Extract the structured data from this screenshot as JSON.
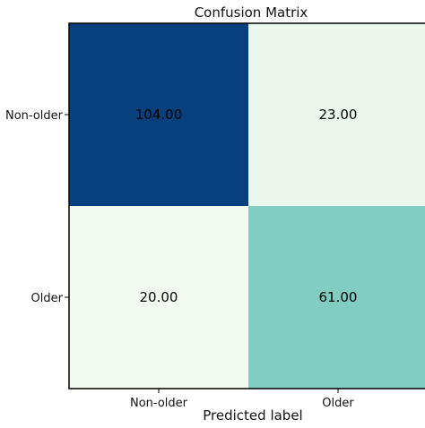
{
  "chart_data": {
    "type": "heatmap",
    "title": "Confusion Matrix",
    "xlabel": "Predicted label",
    "ylabel": "",
    "row_labels": [
      "Non-older",
      "Older"
    ],
    "col_labels": [
      "Non-older",
      "Older"
    ],
    "values": [
      [
        104.0,
        23.0
      ],
      [
        20.0,
        61.0
      ]
    ],
    "value_labels": [
      [
        "104.00",
        "23.00"
      ],
      [
        "20.00",
        "61.00"
      ]
    ],
    "colormap": "BuGn",
    "color_stops": {
      "low": "#f3faf0",
      "mid": "#7fccc0",
      "high": "#08407e"
    },
    "grid": false,
    "legend": "none"
  }
}
